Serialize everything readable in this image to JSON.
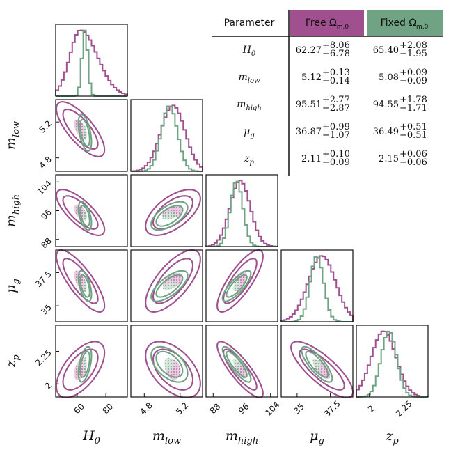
{
  "chart_data": {
    "type": "corner",
    "title": "",
    "parameters": [
      {
        "key": "H0",
        "label": "H",
        "sub": "0",
        "ticks": [
          60,
          80
        ],
        "range": [
          45,
          95
        ]
      },
      {
        "key": "mlow",
        "label": "m",
        "sub": "low",
        "ticks": [
          4.8,
          5.2
        ],
        "range": [
          4.65,
          5.45
        ]
      },
      {
        "key": "mhigh",
        "label": "m",
        "sub": "high",
        "ticks": [
          88,
          96,
          104
        ],
        "range": [
          86,
          106
        ]
      },
      {
        "key": "mug",
        "label": "μ",
        "sub": "g",
        "ticks": [
          35.0,
          37.5
        ],
        "range": [
          33.8,
          39.2
        ]
      },
      {
        "key": "zp",
        "label": "z",
        "sub": "p",
        "ticks": [
          2.0,
          2.25
        ],
        "range": [
          1.9,
          2.45
        ]
      }
    ],
    "series": [
      {
        "name": "Free Ω_{m,0}",
        "color": "#a0508f",
        "median": [
          62.27,
          5.12,
          95.51,
          36.87,
          2.11
        ],
        "err_plus": [
          8.06,
          0.13,
          2.77,
          0.99,
          0.1
        ],
        "err_minus": [
          6.78,
          0.14,
          2.87,
          1.07,
          0.09
        ]
      },
      {
        "name": "Fixed Ω_{m,0}",
        "color": "#6fa383",
        "median": [
          65.4,
          5.08,
          94.55,
          36.49,
          2.15
        ],
        "err_plus": [
          2.08,
          0.09,
          1.78,
          0.51,
          0.06
        ],
        "err_minus": [
          1.95,
          0.09,
          1.71,
          0.51,
          0.06
        ]
      }
    ],
    "correlations": {
      "free": {
        "mlow_H0": -0.75,
        "mhigh_H0": -0.75,
        "mhigh_mlow": 0.6,
        "mug_H0": -0.8,
        "mug_mlow": 0.7,
        "mug_mhigh": 0.8,
        "zp_H0": 0.6,
        "zp_mlow": -0.5,
        "zp_mhigh": -0.85,
        "zp_mug": -0.8
      },
      "fixed": {
        "mlow_H0": -0.5,
        "mhigh_H0": -0.5,
        "mhigh_mlow": 0.6,
        "mug_H0": -0.55,
        "mug_mlow": 0.7,
        "mug_mhigh": 0.8,
        "zp_H0": 0.5,
        "zp_mlow": -0.5,
        "zp_mhigh": -0.85,
        "zp_mug": -0.8
      }
    }
  },
  "table": {
    "header_param": "Parameter",
    "header_free": "Free Ω",
    "header_free_sub": "m,0",
    "header_fixed": "Fixed Ω",
    "header_fixed_sub": "m,0",
    "header_free_color": "#a0508f",
    "header_fixed_color": "#6fa383",
    "rows": [
      {
        "param": "H",
        "param_sub": "0",
        "free": "62.27",
        "free_plus": "+8.06",
        "free_minus": "−6.78",
        "fixed": "65.40",
        "fixed_plus": "+2.08",
        "fixed_minus": "−1.95"
      },
      {
        "param": "m",
        "param_sub": "low",
        "free": "5.12",
        "free_plus": "+0.13",
        "free_minus": "−0.14",
        "fixed": "5.08",
        "fixed_plus": "+0.09",
        "fixed_minus": "−0.09"
      },
      {
        "param": "m",
        "param_sub": "high",
        "free": "95.51",
        "free_plus": "+2.77",
        "free_minus": "−2.87",
        "fixed": "94.55",
        "fixed_plus": "+1.78",
        "fixed_minus": "−1.71"
      },
      {
        "param": "μ",
        "param_sub": "g",
        "free": "36.87",
        "free_plus": "+0.99",
        "free_minus": "−1.07",
        "fixed": "36.49",
        "fixed_plus": "+0.51",
        "fixed_minus": "−0.51"
      },
      {
        "param": "z",
        "param_sub": "p",
        "free": "2.11",
        "free_plus": "+0.10",
        "free_minus": "−0.09",
        "fixed": "2.15",
        "fixed_plus": "+0.06",
        "fixed_minus": "−0.06"
      }
    ]
  }
}
